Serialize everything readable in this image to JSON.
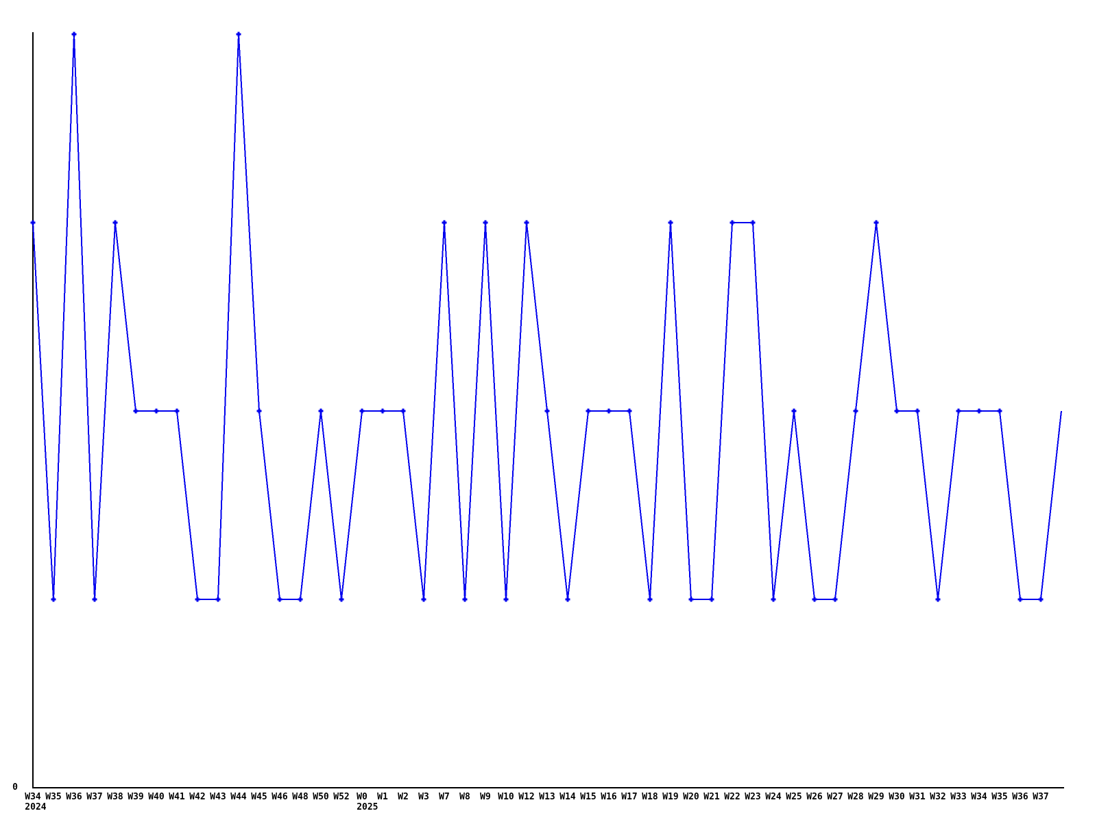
{
  "chart_data": {
    "type": "line",
    "title": "",
    "xlabel": "",
    "ylabel": "",
    "legend": "none",
    "y_axis": {
      "shown_tick_labels": [
        "0"
      ],
      "min": 0,
      "max": 4,
      "gridlines": false
    },
    "x_axis": {
      "tick_label_rows": 2,
      "year_markers": [
        {
          "point_index": 0,
          "label": "2024"
        },
        {
          "point_index": 16,
          "label": "2025"
        }
      ]
    },
    "style": {
      "line_color": "#0000ee",
      "marker_color": "#0000ee",
      "axis_color": "#000000",
      "text_color": "#000000",
      "background": "#ffffff",
      "marker": "plus"
    },
    "points": [
      {
        "week": "W34",
        "value": 3
      },
      {
        "week": "W35",
        "value": 1
      },
      {
        "week": "W36",
        "value": 4
      },
      {
        "week": "W37",
        "value": 1
      },
      {
        "week": "W38",
        "value": 3
      },
      {
        "week": "W39",
        "value": 2
      },
      {
        "week": "W40",
        "value": 2
      },
      {
        "week": "W41",
        "value": 2
      },
      {
        "week": "W42",
        "value": 1
      },
      {
        "week": "W43",
        "value": 1
      },
      {
        "week": "W44",
        "value": 4
      },
      {
        "week": "W45",
        "value": 2
      },
      {
        "week": "W46",
        "value": 1
      },
      {
        "week": "W48",
        "value": 1
      },
      {
        "week": "W50",
        "value": 2
      },
      {
        "week": "W52",
        "value": 1
      },
      {
        "week": "W0",
        "value": 2
      },
      {
        "week": "W1",
        "value": 2
      },
      {
        "week": "W2",
        "value": 2
      },
      {
        "week": "W3",
        "value": 1
      },
      {
        "week": "W7",
        "value": 3
      },
      {
        "week": "W8",
        "value": 1
      },
      {
        "week": "W9",
        "value": 3
      },
      {
        "week": "W10",
        "value": 1
      },
      {
        "week": "W12",
        "value": 3
      },
      {
        "week": "W13",
        "value": 2
      },
      {
        "week": "W14",
        "value": 1
      },
      {
        "week": "W15",
        "value": 2
      },
      {
        "week": "W16",
        "value": 2
      },
      {
        "week": "W17",
        "value": 2
      },
      {
        "week": "W18",
        "value": 1
      },
      {
        "week": "W19",
        "value": 3
      },
      {
        "week": "W20",
        "value": 1
      },
      {
        "week": "W21",
        "value": 1
      },
      {
        "week": "W22",
        "value": 3
      },
      {
        "week": "W23",
        "value": 3
      },
      {
        "week": "W24",
        "value": 1
      },
      {
        "week": "W25",
        "value": 2
      },
      {
        "week": "W26",
        "value": 1
      },
      {
        "week": "W27",
        "value": 1
      },
      {
        "week": "W28",
        "value": 2
      },
      {
        "week": "W29",
        "value": 3
      },
      {
        "week": "W30",
        "value": 2
      },
      {
        "week": "W31",
        "value": 2
      },
      {
        "week": "W32",
        "value": 1
      },
      {
        "week": "W33",
        "value": 2
      },
      {
        "week": "W34",
        "value": 2
      },
      {
        "week": "W35",
        "value": 2
      },
      {
        "week": "W36",
        "value": 1
      },
      {
        "week": "W37",
        "value": 1
      },
      {
        "week": "",
        "value": 2,
        "marker": false
      }
    ]
  }
}
